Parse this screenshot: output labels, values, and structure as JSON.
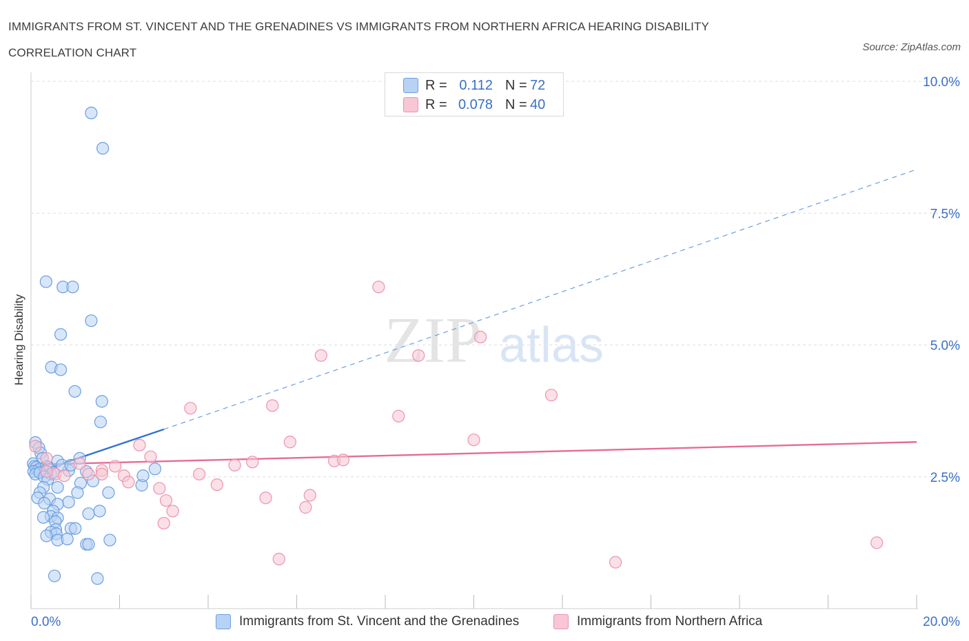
{
  "title_line1": "IMMIGRANTS FROM ST. VINCENT AND THE GRENADINES VS IMMIGRANTS FROM NORTHERN AFRICA HEARING DISABILITY",
  "title_line2": "CORRELATION CHART",
  "source": "Source: ZipAtlas.com",
  "watermark": {
    "zip": "ZIP",
    "atlas": "atlas"
  },
  "colors": {
    "blue_fill": "#b8d2f4",
    "blue_stroke": "#6a9ee0",
    "blue_line": "#2f72d2",
    "pink_fill": "#f8c6d4",
    "pink_stroke": "#eb93ad",
    "pink_line": "#e66b93",
    "axis_label": "#3a6fc6",
    "grid": "#dddddd"
  },
  "legend": {
    "r_label": "R =",
    "n_label": "N =",
    "series": [
      {
        "r": "0.112",
        "n": "72"
      },
      {
        "r": "0.078",
        "n": "40"
      }
    ]
  },
  "bottom_legend": [
    "Immigrants from St. Vincent and the Grenadines",
    "Immigrants from Northern Africa"
  ],
  "chart_data": {
    "type": "scatter",
    "title": "IMMIGRANTS FROM ST. VINCENT AND THE GRENADINES VS IMMIGRANTS FROM NORTHERN AFRICA HEARING DISABILITY CORRELATION CHART",
    "xlabel": "",
    "ylabel": "Hearing Disability",
    "xlim": [
      0,
      20
    ],
    "ylim": [
      0,
      10
    ],
    "x_tick_labels": [
      "0.0%",
      "20.0%"
    ],
    "y_tick_labels": [
      "2.5%",
      "5.0%",
      "7.5%",
      "10.0%"
    ],
    "y_ticks": [
      2.5,
      5.0,
      7.5,
      10.0
    ],
    "grid": true,
    "legend_position": "top-center",
    "series": [
      {
        "name": "Immigrants from St. Vincent and the Grenadines",
        "points": [
          [
            1.36,
            9.4
          ],
          [
            1.62,
            8.73
          ],
          [
            0.34,
            6.2
          ],
          [
            0.72,
            6.1
          ],
          [
            0.94,
            6.1
          ],
          [
            1.36,
            5.46
          ],
          [
            0.67,
            5.2
          ],
          [
            0.46,
            4.58
          ],
          [
            0.67,
            4.53
          ],
          [
            0.99,
            4.12
          ],
          [
            1.6,
            3.93
          ],
          [
            1.57,
            3.54
          ],
          [
            0.1,
            3.15
          ],
          [
            0.18,
            3.05
          ],
          [
            0.22,
            2.95
          ],
          [
            0.26,
            2.85
          ],
          [
            0.05,
            2.75
          ],
          [
            0.08,
            2.7
          ],
          [
            0.12,
            2.68
          ],
          [
            0.15,
            2.62
          ],
          [
            0.2,
            2.65
          ],
          [
            0.3,
            2.6
          ],
          [
            0.35,
            2.7
          ],
          [
            0.4,
            2.68
          ],
          [
            0.45,
            2.55
          ],
          [
            0.5,
            2.58
          ],
          [
            0.06,
            2.6
          ],
          [
            0.1,
            2.55
          ],
          [
            0.2,
            2.58
          ],
          [
            0.3,
            2.5
          ],
          [
            0.38,
            2.45
          ],
          [
            0.28,
            2.3
          ],
          [
            0.2,
            2.2
          ],
          [
            0.15,
            2.1
          ],
          [
            0.42,
            2.08
          ],
          [
            0.3,
            2.0
          ],
          [
            0.6,
            2.3
          ],
          [
            0.85,
            2.62
          ],
          [
            1.1,
            2.85
          ],
          [
            1.25,
            2.6
          ],
          [
            1.4,
            2.42
          ],
          [
            1.12,
            2.38
          ],
          [
            1.05,
            2.2
          ],
          [
            0.85,
            2.02
          ],
          [
            0.6,
            1.98
          ],
          [
            0.5,
            1.85
          ],
          [
            0.45,
            1.75
          ],
          [
            0.28,
            1.73
          ],
          [
            0.6,
            1.72
          ],
          [
            0.55,
            1.65
          ],
          [
            0.9,
            1.52
          ],
          [
            1.0,
            1.52
          ],
          [
            0.56,
            1.5
          ],
          [
            0.45,
            1.45
          ],
          [
            0.57,
            1.42
          ],
          [
            0.35,
            1.38
          ],
          [
            0.6,
            1.3
          ],
          [
            0.82,
            1.32
          ],
          [
            1.3,
            1.8
          ],
          [
            1.55,
            1.85
          ],
          [
            1.75,
            2.2
          ],
          [
            1.25,
            1.22
          ],
          [
            1.3,
            1.22
          ],
          [
            1.78,
            1.3
          ],
          [
            0.53,
            0.62
          ],
          [
            1.5,
            0.57
          ],
          [
            2.5,
            2.34
          ],
          [
            2.53,
            2.52
          ],
          [
            2.8,
            2.65
          ],
          [
            0.6,
            2.8
          ],
          [
            0.7,
            2.72
          ],
          [
            0.9,
            2.72
          ]
        ]
      },
      {
        "name": "Immigrants from Northern Africa",
        "points": [
          [
            0.1,
            3.08
          ],
          [
            0.35,
            2.85
          ],
          [
            0.55,
            2.55
          ],
          [
            0.75,
            2.52
          ],
          [
            1.1,
            2.75
          ],
          [
            1.3,
            2.55
          ],
          [
            1.6,
            2.62
          ],
          [
            1.9,
            2.7
          ],
          [
            2.1,
            2.52
          ],
          [
            2.2,
            2.4
          ],
          [
            2.45,
            3.1
          ],
          [
            2.7,
            2.88
          ],
          [
            2.9,
            2.28
          ],
          [
            3.05,
            2.05
          ],
          [
            3.2,
            1.85
          ],
          [
            3.0,
            1.62
          ],
          [
            3.6,
            3.8
          ],
          [
            3.8,
            2.55
          ],
          [
            4.2,
            2.35
          ],
          [
            4.6,
            2.72
          ],
          [
            5.0,
            2.78
          ],
          [
            5.3,
            2.1
          ],
          [
            5.45,
            3.85
          ],
          [
            5.6,
            0.94
          ],
          [
            5.85,
            3.16
          ],
          [
            6.2,
            1.92
          ],
          [
            6.3,
            2.15
          ],
          [
            6.55,
            4.8
          ],
          [
            6.85,
            2.8
          ],
          [
            7.05,
            2.82
          ],
          [
            7.85,
            6.1
          ],
          [
            8.3,
            3.65
          ],
          [
            8.75,
            4.8
          ],
          [
            10.0,
            3.2
          ],
          [
            10.15,
            5.15
          ],
          [
            11.75,
            4.05
          ],
          [
            13.2,
            0.88
          ],
          [
            19.1,
            1.25
          ],
          [
            1.6,
            2.55
          ],
          [
            0.35,
            2.6
          ]
        ]
      }
    ],
    "trendlines": [
      {
        "series": "Immigrants from St. Vincent and the Grenadines",
        "solid_from": [
          0,
          2.55
        ],
        "solid_to": [
          3.0,
          3.4
        ],
        "dashed_to": [
          20,
          8.33
        ]
      },
      {
        "series": "Immigrants from Northern Africa",
        "from": [
          0,
          2.73
        ],
        "to": [
          20,
          3.16
        ]
      }
    ]
  }
}
